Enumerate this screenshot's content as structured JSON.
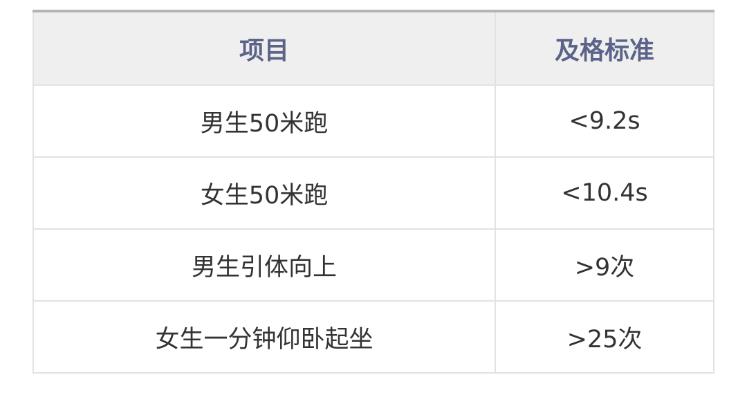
{
  "table": {
    "headers": [
      "项目",
      "及格标准"
    ],
    "rows": [
      [
        "男生50米跑",
        "<9.2s"
      ],
      [
        "女生50米跑",
        "<10.4s"
      ],
      [
        "男生引体向上",
        ">9次"
      ],
      [
        "女生一分钟仰卧起坐",
        ">25次"
      ]
    ]
  }
}
